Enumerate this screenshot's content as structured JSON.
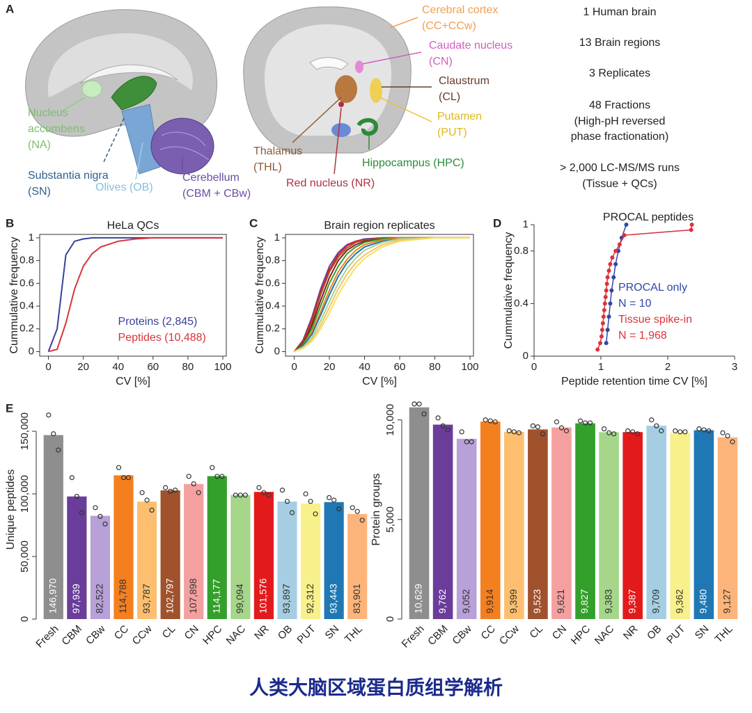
{
  "panel_letters": [
    "A",
    "B",
    "C",
    "D",
    "E"
  ],
  "brain_labels": {
    "nucleus_accumbens": [
      "Nucleus",
      "accumbens",
      "(NA)"
    ],
    "substantia_nigra": [
      "Substantia nigra",
      "(SN)"
    ],
    "olives": [
      "Olives (OB)"
    ],
    "cerebellum": [
      "Cerebellum",
      "(CBM + CBw)"
    ],
    "cerebral_cortex": [
      "Cerebral cortex",
      "(CC+CCw)"
    ],
    "caudate_nucleus": [
      "Caudate nucleus",
      "(CN)"
    ],
    "claustrum": [
      "Claustrum",
      "(CL)"
    ],
    "putamen": [
      "Putamen",
      "(PUT)"
    ],
    "thalamus": [
      "Thalamus",
      "(THL)"
    ],
    "red_nucleus": [
      "Red nucleus (NR)"
    ],
    "hippocampus": [
      "Hippocampus (HPC)"
    ]
  },
  "study_summary": [
    "1 Human brain",
    "13 Brain regions",
    "3 Replicates",
    "48 Fractions",
    "(High-pH reversed",
    "phase fractionation)",
    "> 2,000 LC-MS/MS runs",
    "(Tissue + QCs)"
  ],
  "caption": "人类大脑区域蛋白质组学解析",
  "chart_data": [
    {
      "type": "line",
      "title": "HeLa QCs",
      "x_label": "CV  [%]",
      "y_label": "Cummulative frequency",
      "x": [
        0,
        5,
        10,
        15,
        20,
        25,
        30,
        40,
        50,
        60,
        80,
        100
      ],
      "xlim": [
        -5,
        102
      ],
      "ylim": [
        -0.04,
        1.03
      ],
      "xticks": [
        0,
        20,
        40,
        60,
        80,
        100
      ],
      "yticks": [
        0,
        0.2,
        0.4,
        0.6,
        0.8,
        1
      ],
      "frame": true,
      "legend": "lower right",
      "series": [
        {
          "name": "Proteins (2,845)",
          "color": "#3a3f9a",
          "values": [
            0,
            0.2,
            0.85,
            0.97,
            0.99,
            1,
            1,
            1,
            1,
            1,
            1,
            1
          ]
        },
        {
          "name": "Peptides (10,488)",
          "color": "#d9333a",
          "values": [
            0,
            0.02,
            0.25,
            0.55,
            0.75,
            0.86,
            0.92,
            0.97,
            0.99,
            1,
            1,
            1
          ]
        }
      ]
    },
    {
      "type": "line",
      "title": "Brain region replicates",
      "x_label": "CV [%]",
      "y_label": "Cummulative frequency",
      "x": [
        0,
        5,
        10,
        15,
        20,
        25,
        30,
        35,
        40,
        50,
        60,
        80,
        100
      ],
      "xlim": [
        -5,
        102
      ],
      "ylim": [
        -0.04,
        1.03
      ],
      "xticks": [
        0,
        20,
        40,
        60,
        80,
        100
      ],
      "yticks": [
        0,
        0.2,
        0.4,
        0.6,
        0.8,
        1
      ],
      "frame": true,
      "series": [
        {
          "color": "#6a3d9a",
          "values": [
            0,
            0.1,
            0.3,
            0.55,
            0.75,
            0.87,
            0.94,
            0.97,
            0.99,
            1,
            1,
            1,
            1
          ]
        },
        {
          "color": "#e31a1c",
          "values": [
            0,
            0.09,
            0.28,
            0.52,
            0.72,
            0.85,
            0.93,
            0.97,
            0.98,
            1,
            1,
            1,
            1
          ]
        },
        {
          "color": "#a0522d",
          "values": [
            0,
            0.08,
            0.26,
            0.5,
            0.7,
            0.83,
            0.91,
            0.96,
            0.98,
            1,
            1,
            1,
            1
          ]
        },
        {
          "color": "#8b1a1a",
          "values": [
            0,
            0.07,
            0.23,
            0.45,
            0.65,
            0.8,
            0.89,
            0.94,
            0.97,
            0.99,
            1,
            1,
            1
          ]
        },
        {
          "color": "#33a02c",
          "values": [
            0,
            0.06,
            0.2,
            0.4,
            0.6,
            0.75,
            0.86,
            0.92,
            0.96,
            0.99,
            1,
            1,
            1
          ]
        },
        {
          "color": "#f47f1f",
          "values": [
            0,
            0.05,
            0.17,
            0.35,
            0.54,
            0.7,
            0.81,
            0.89,
            0.94,
            0.98,
            1,
            1,
            1
          ]
        },
        {
          "color": "#1f78b4",
          "values": [
            0,
            0.05,
            0.15,
            0.32,
            0.5,
            0.66,
            0.78,
            0.86,
            0.92,
            0.97,
            0.99,
            1,
            1
          ]
        },
        {
          "color": "#a6d68a",
          "values": [
            0,
            0.04,
            0.12,
            0.27,
            0.44,
            0.6,
            0.73,
            0.82,
            0.89,
            0.96,
            0.99,
            1,
            1
          ]
        },
        {
          "color": "#fdbf6f",
          "values": [
            0,
            0.03,
            0.1,
            0.23,
            0.39,
            0.55,
            0.68,
            0.78,
            0.85,
            0.94,
            0.98,
            1,
            1
          ]
        },
        {
          "color": "#f2e35c",
          "values": [
            0,
            0.03,
            0.09,
            0.2,
            0.34,
            0.5,
            0.63,
            0.74,
            0.82,
            0.92,
            0.97,
            1,
            1
          ]
        }
      ]
    },
    {
      "type": "line",
      "markers": true,
      "title": "PROCAL peptides",
      "x_label": "Peptide retention time CV [%]",
      "y_label": "Cummulative frequency",
      "xlim": [
        0,
        3
      ],
      "ylim": [
        0,
        1
      ],
      "xticks": [
        0,
        1,
        2,
        3
      ],
      "yticks": [
        0,
        0.4,
        0.8,
        1
      ],
      "frame": false,
      "legend": "center right",
      "series": [
        {
          "name": "PROCAL only",
          "note": "N = 10",
          "color": "#2f47a8",
          "x": [
            1.08,
            1.1,
            1.12,
            1.14,
            1.16,
            1.19,
            1.22,
            1.26,
            1.31,
            1.38
          ],
          "values": [
            0.1,
            0.2,
            0.3,
            0.4,
            0.5,
            0.6,
            0.7,
            0.8,
            0.9,
            1
          ]
        },
        {
          "name": "Tissue spike-in",
          "note": "N = 1,968",
          "color": "#d9333a",
          "x": [
            0.95,
            0.99,
            1.01,
            1.02,
            1.03,
            1.04,
            1.05,
            1.06,
            1.07,
            1.08,
            1.09,
            1.1,
            1.12,
            1.14,
            1.17,
            1.22,
            1.28,
            1.35,
            2.35,
            2.36
          ],
          "values": [
            0.05,
            0.1,
            0.15,
            0.2,
            0.25,
            0.3,
            0.35,
            0.4,
            0.45,
            0.5,
            0.55,
            0.6,
            0.65,
            0.7,
            0.75,
            0.8,
            0.85,
            0.92,
            0.96,
            1
          ]
        }
      ]
    },
    {
      "type": "bar",
      "y_label": "Unique peptides",
      "categories": [
        "Fresh",
        "CBM",
        "CBw",
        "CC",
        "CCw",
        "CL",
        "CN",
        "HPC",
        "NAC",
        "NR",
        "OB",
        "PUT",
        "SN",
        "THL"
      ],
      "values": [
        146970,
        97939,
        82522,
        114788,
        93787,
        102797,
        107898,
        114177,
        99094,
        101576,
        93897,
        92312,
        93443,
        83901
      ],
      "value_labels": [
        "146,970",
        "97,939",
        "82,522",
        "114,788",
        "93,787",
        "102,797",
        "107,898",
        "114,177",
        "99,094",
        "101,576",
        "93,897",
        "92,312",
        "93,443",
        "83,901"
      ],
      "colors": [
        "#8e8e8e",
        "#6a3d9a",
        "#b8a0d8",
        "#f47f1f",
        "#fdbf6f",
        "#a0522d",
        "#f4a0a0",
        "#33a02c",
        "#a6d68a",
        "#e31a1c",
        "#a6cee3",
        "#f8f08a",
        "#1f78b4",
        "#fdb47a"
      ],
      "replicates": [
        [
          163000,
          148000,
          135000
        ],
        [
          113000,
          98000,
          85000
        ],
        [
          89000,
          82000,
          76000
        ],
        [
          121000,
          113000,
          113000
        ],
        [
          101000,
          95000,
          87000
        ],
        [
          105000,
          102000,
          103000
        ],
        [
          114000,
          108000,
          101000
        ],
        [
          121000,
          114000,
          114000
        ],
        [
          99000,
          99000,
          99000
        ],
        [
          105000,
          101000,
          99000
        ],
        [
          103000,
          94000,
          85000
        ],
        [
          100000,
          94000,
          84000
        ],
        [
          97000,
          95000,
          88000
        ],
        [
          89000,
          86000,
          79000
        ]
      ],
      "ylim": [
        0,
        175000
      ],
      "yticks": [
        0,
        {
          "value": 50000,
          "label": "50,000"
        },
        {
          "value": 100000,
          "label": "100,000"
        },
        {
          "value": 150000,
          "label": "150,000"
        }
      ]
    },
    {
      "type": "bar",
      "y_label": "Protein groups",
      "categories": [
        "Fresh",
        "CBM",
        "CBw",
        "CC",
        "CCw",
        "CL",
        "CN",
        "HPC",
        "NAC",
        "NR",
        "OB",
        "PUT",
        "SN",
        "THL"
      ],
      "values": [
        10629,
        9762,
        9052,
        9914,
        9399,
        9523,
        9621,
        9827,
        9383,
        9387,
        9709,
        9362,
        9480,
        9127
      ],
      "value_labels": [
        "10,629",
        "9,762",
        "9,052",
        "9,914",
        "9,399",
        "9,523",
        "9,621",
        "9,827",
        "9,383",
        "9,387",
        "9,709",
        "9,362",
        "9,480",
        "9,127"
      ],
      "colors": [
        "#8e8e8e",
        "#6a3d9a",
        "#b8a0d8",
        "#f47f1f",
        "#fdbf6f",
        "#a0522d",
        "#f4a0a0",
        "#33a02c",
        "#a6d68a",
        "#e31a1c",
        "#a6cee3",
        "#f8f08a",
        "#1f78b4",
        "#fdb47a"
      ],
      "replicates": [
        [
          10800,
          10800,
          10300
        ],
        [
          10100,
          9700,
          9500
        ],
        [
          9400,
          8900,
          8900
        ],
        [
          10000,
          9950,
          9900
        ],
        [
          9450,
          9400,
          9350
        ],
        [
          9700,
          9650,
          9300
        ],
        [
          9900,
          9600,
          9450
        ],
        [
          9950,
          9850,
          9850
        ],
        [
          9550,
          9350,
          9300
        ],
        [
          9450,
          9400,
          9300
        ],
        [
          10000,
          9700,
          9450
        ],
        [
          9450,
          9400,
          9400
        ],
        [
          9550,
          9500,
          9450
        ],
        [
          9350,
          9200,
          8900
        ]
      ],
      "ylim": [
        0,
        11000
      ],
      "yticks": [
        0,
        {
          "value": 5000,
          "label": "5,000"
        },
        {
          "value": 10000,
          "label": "10,000"
        }
      ]
    }
  ]
}
